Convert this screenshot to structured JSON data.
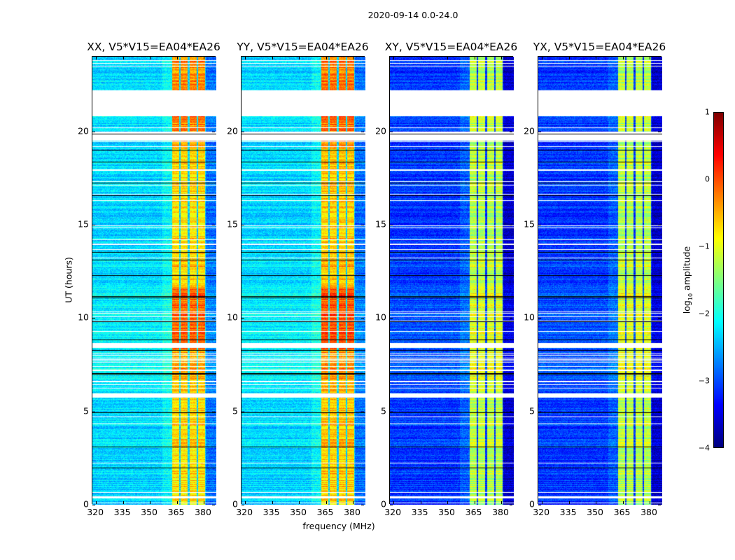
{
  "chart_data": {
    "type": "heatmap",
    "title": "2020-09-14 0.0-24.0",
    "xlabel": "frequency (MHz)",
    "ylabel": "UT (hours)",
    "xlim": [
      318,
      387
    ],
    "ylim": [
      0,
      24
    ],
    "xticks": [
      320,
      335,
      350,
      365,
      380
    ],
    "yticks": [
      0,
      5,
      10,
      15,
      20
    ],
    "colorbar": {
      "label": "log10 amplitude",
      "label_main": "log",
      "label_sub": "10",
      "label_rest": " amplitude",
      "range": [
        -4,
        1
      ],
      "ticks": [
        "1",
        "0",
        "−1",
        "−2",
        "−3",
        "−4"
      ],
      "tick_values": [
        1,
        0,
        -1,
        -2,
        -3,
        -4
      ],
      "colormap": "jet"
    },
    "panels": [
      {
        "title": "XX, V5*V15=EA04*EA26",
        "pol": "XX",
        "baseline_level": -2.3,
        "band_level": -0.7
      },
      {
        "title": "YY, V5*V15=EA04*EA26",
        "pol": "YY",
        "baseline_level": -2.3,
        "band_level": -0.6
      },
      {
        "title": "XY, V5*V15=EA04*EA26",
        "pol": "XY",
        "baseline_level": -3.1,
        "band_level": -1.2
      },
      {
        "title": "YX, V5*V15=EA04*EA26",
        "pol": "YX",
        "baseline_level": -3.1,
        "band_level": -1.2
      }
    ],
    "band_subbands_mhz": [
      [
        362.5,
        366.5
      ],
      [
        367.2,
        371.2
      ],
      [
        372.0,
        376.0
      ],
      [
        376.8,
        380.8
      ]
    ],
    "flagged_hours": [
      [
        20.8,
        22.2
      ],
      [
        19.5,
        20.0
      ],
      [
        8.45,
        8.65
      ],
      [
        6.55,
        6.65
      ],
      [
        5.75,
        5.95
      ],
      [
        0.35,
        0.45
      ]
    ],
    "y_tick_labels": [
      "0",
      "5",
      "10",
      "15",
      "20"
    ],
    "x_tick_labels": [
      "320",
      "335",
      "350",
      "365",
      "380"
    ]
  }
}
